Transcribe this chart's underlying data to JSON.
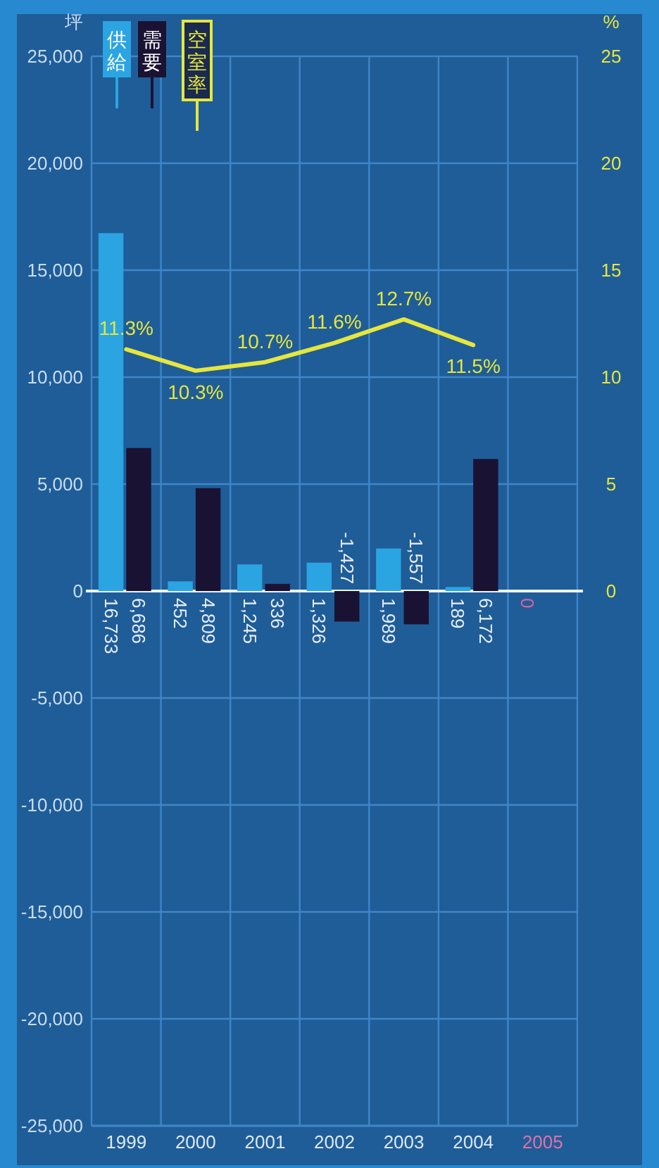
{
  "chart_data": {
    "type": "bar",
    "ylabel": "坪",
    "y2label": "%",
    "categories": [
      "1999",
      "2000",
      "2001",
      "2002",
      "2003",
      "2004",
      "2005"
    ],
    "series": [
      {
        "name": "供給",
        "color": "#2ba4e2",
        "values": [
          16733,
          452,
          1245,
          1326,
          1989,
          189,
          0
        ],
        "value_labels": [
          "16,733",
          "452",
          "1,245",
          "1,326",
          "1,989",
          "189",
          "0"
        ]
      },
      {
        "name": "需要",
        "color": "#1a1233",
        "values": [
          6686,
          4809,
          336,
          -1427,
          -1557,
          6172,
          null
        ],
        "value_labels": [
          "6,686",
          "4,809",
          "336",
          "-1,427",
          "-1,557",
          "6,172",
          null
        ]
      },
      {
        "name": "空室率",
        "type": "line",
        "axis": "y2",
        "color": "#e6e63c",
        "values": [
          11.3,
          10.3,
          10.7,
          11.6,
          12.7,
          11.5,
          null
        ],
        "value_labels": [
          "11.3%",
          "10.3%",
          "10.7%",
          "11.6%",
          "12.7%",
          "11.5%",
          null
        ]
      }
    ],
    "ylim": [
      -25000,
      25000
    ],
    "yticks": [
      {
        "value": -25000,
        "label": "-25,000"
      },
      {
        "value": -20000,
        "label": "-20,000"
      },
      {
        "value": -15000,
        "label": "-15,000"
      },
      {
        "value": -10000,
        "label": "-10,000"
      },
      {
        "value": -5000,
        "label": "-5,000"
      },
      0,
      {
        "value": 5000,
        "label": "5,000"
      },
      {
        "value": 10000,
        "label": "10,000"
      },
      {
        "value": 15000,
        "label": "15,000"
      },
      {
        "value": 20000,
        "label": "20,000"
      },
      {
        "value": 25000,
        "label": "25,000"
      }
    ],
    "y2lim": [
      -25,
      25
    ],
    "y2ticks": [
      0,
      5,
      10,
      15,
      20,
      25
    ],
    "grid": true,
    "legend": "top left"
  }
}
